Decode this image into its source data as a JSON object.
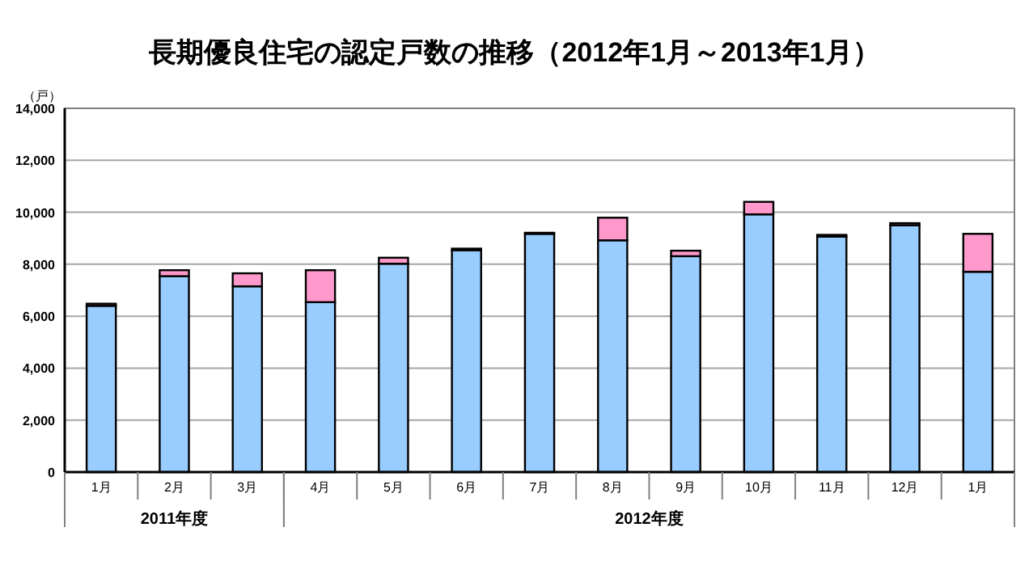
{
  "chart_data": {
    "type": "bar",
    "stacked": true,
    "title": "長期優良住宅の認定戸数の推移（2012年1月～2013年1月）",
    "ylabel": "（戸）",
    "categories": [
      "1月",
      "2月",
      "3月",
      "4月",
      "5月",
      "6月",
      "7月",
      "8月",
      "9月",
      "10月",
      "11月",
      "12月",
      "1月"
    ],
    "series": [
      {
        "color": "#99ccff",
        "values": [
          6400,
          7540,
          7150,
          6540,
          8020,
          8540,
          9170,
          8920,
          8310,
          9920,
          9060,
          9500,
          7710
        ]
      },
      {
        "color": "#ff99cc",
        "values": [
          80,
          230,
          500,
          1230,
          230,
          60,
          40,
          870,
          210,
          480,
          70,
          80,
          1460
        ]
      }
    ],
    "ylim": [
      0,
      14000
    ],
    "yticks": [
      {
        "value": 0,
        "label": "0"
      },
      {
        "value": 2000,
        "label": "2,000"
      },
      {
        "value": 4000,
        "label": "4,000"
      },
      {
        "value": 6000,
        "label": "6,000"
      },
      {
        "value": 8000,
        "label": "8,000"
      },
      {
        "value": 10000,
        "label": "10,000"
      },
      {
        "value": 12000,
        "label": "12,000"
      },
      {
        "value": 14000,
        "label": "14,000"
      }
    ],
    "grid": "y",
    "annotations": [
      "2011年度",
      "2012年度"
    ]
  }
}
